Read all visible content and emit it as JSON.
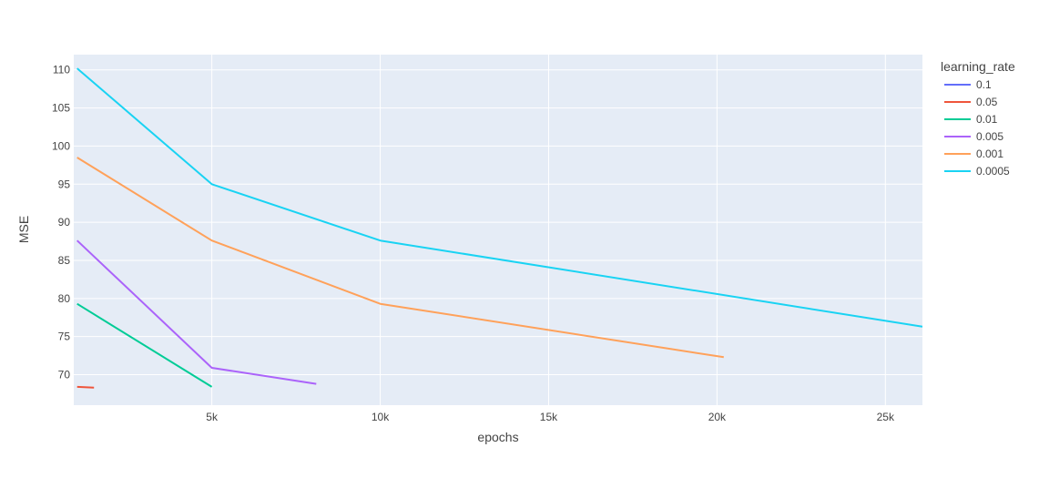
{
  "chart_data": {
    "type": "line",
    "title": "",
    "xlabel": "epochs",
    "ylabel": "MSE",
    "xlim": [
      900,
      26100
    ],
    "ylim": [
      66,
      112
    ],
    "x_ticks": [
      5000,
      10000,
      15000,
      20000,
      25000
    ],
    "x_tick_labels": [
      "5k",
      "10k",
      "15k",
      "20k",
      "25k"
    ],
    "y_ticks": [
      70,
      75,
      80,
      85,
      90,
      95,
      100,
      105,
      110
    ],
    "y_tick_labels": [
      "70",
      "75",
      "80",
      "85",
      "90",
      "95",
      "100",
      "105",
      "110"
    ],
    "grid": true,
    "plot_background": "#E5ECF6",
    "legend": {
      "title": "learning_rate",
      "placement": "right"
    },
    "series": [
      {
        "name": "0.1",
        "color": "#636EFA",
        "x": [],
        "y": []
      },
      {
        "name": "0.05",
        "color": "#EF553B",
        "x": [
          1000,
          1500
        ],
        "y": [
          68.4,
          68.3
        ]
      },
      {
        "name": "0.01",
        "color": "#00CC96",
        "x": [
          1000,
          5000
        ],
        "y": [
          79.3,
          68.4
        ]
      },
      {
        "name": "0.005",
        "color": "#AB63FA",
        "x": [
          1000,
          5000,
          8100
        ],
        "y": [
          87.6,
          70.9,
          68.8
        ]
      },
      {
        "name": "0.001",
        "color": "#FFA15A",
        "x": [
          1000,
          5000,
          10000,
          20200
        ],
        "y": [
          98.5,
          87.6,
          79.3,
          72.3
        ]
      },
      {
        "name": "0.0005",
        "color": "#19D3F3",
        "x": [
          1000,
          5000,
          10000,
          26100
        ],
        "y": [
          110.2,
          95.0,
          87.6,
          76.3
        ]
      }
    ]
  }
}
